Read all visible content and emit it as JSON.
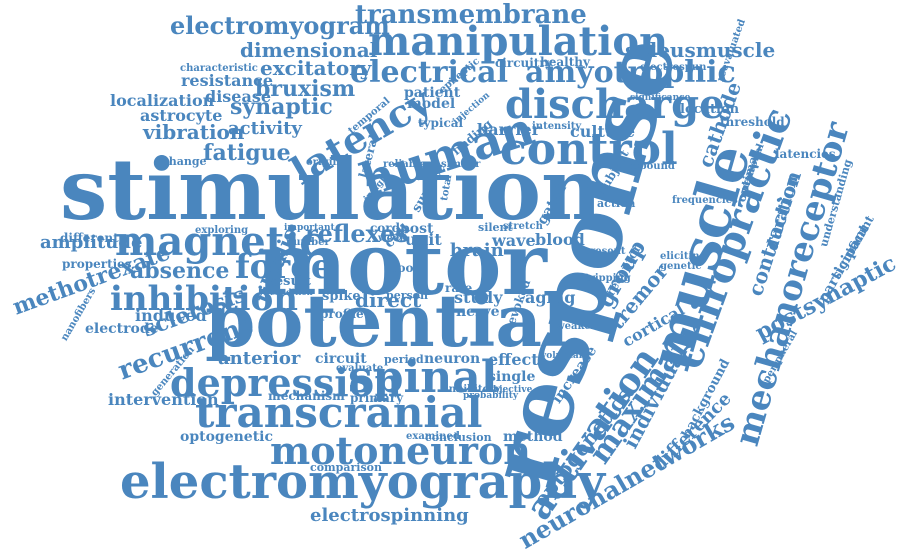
{
  "color": "#4a86be",
  "words": [
    "stimulation",
    "motor",
    "response",
    "potential",
    "muscle",
    "transcranial",
    "electromyography",
    "human",
    "control",
    "discharge",
    "latency",
    "spinal",
    "depression",
    "magnetic",
    "inhibition",
    "force",
    "chiropractic",
    "mechanoreceptor",
    "activation",
    "motoneuron",
    "manipulation",
    "electrical",
    "amyotrophic",
    "neuronalnetworks",
    "maximal",
    "optogenetics",
    "individual",
    "difference",
    "postsynaptic",
    "contraction",
    "transmembrane",
    "electromyogram",
    "dimensional",
    "excitatory",
    "bruxism",
    "synaptic",
    "vibration",
    "activity",
    "fatigue",
    "soleusmuscle",
    "reflexes",
    "absence",
    "methotrexate",
    "amplitude",
    "recurrent",
    "sclerosis",
    "anterior",
    "intervention",
    "optogenetic",
    "electrospinning",
    "induced",
    "electrode",
    "tibialis",
    "direct",
    "brain",
    "unit",
    "cell",
    "wave",
    "blood",
    "group",
    "tremor",
    "cortical",
    "neuron",
    "effect",
    "single",
    "circuit",
    "study",
    "nerve",
    "aging",
    "post",
    "cord",
    "localization",
    "disease",
    "resistance",
    "astrocyte",
    "characteristic",
    "circuitry",
    "healthy",
    "electrospun",
    "location",
    "threshold",
    "latencies",
    "cathode",
    "duration",
    "optimal",
    "participant",
    "significant",
    "understanding",
    "receptor",
    "barrier",
    "culture",
    "patient",
    "model",
    "typical",
    "finding",
    "surface",
    "lateral",
    "tool",
    "result",
    "spike",
    "profile",
    "primary",
    "mechanism",
    "comparison",
    "conclusion",
    "examined",
    "method",
    "increase",
    "background",
    "peripheral",
    "properties",
    "different",
    "exploring",
    "change",
    "origin",
    "frequencies",
    "subject",
    "action",
    "present",
    "genetic",
    "eliciting",
    "rebound",
    "neuronal",
    "period",
    "evaluate",
    "inhibitory",
    "probability",
    "objective",
    "weaken",
    "evoked",
    "rate",
    "person",
    "tripping",
    "similar",
    "reliable",
    "temporal",
    "injection",
    "intensity",
    "significance",
    "reevaluated",
    "epileptic",
    "insight",
    "condition",
    "generation",
    "nanofibers",
    "week",
    "number",
    "important",
    "total",
    "voluntary",
    "silent",
    "stretch",
    "gated",
    "control",
    "output",
    "bruxism",
    "probabilistic",
    "dorsiflexion",
    "falling",
    "phase",
    "minimal",
    "mixed",
    "extrapolation",
    "neurological",
    "functional",
    "variation",
    "outcome",
    "whereas",
    "older",
    "efficacy",
    "coherence",
    "research",
    "neural",
    "afferent",
    "neck",
    "general",
    "sensory",
    "domain",
    "device",
    "stochastic",
    "phase",
    "rheumatoid",
    "aspect",
    "recording"
  ]
}
